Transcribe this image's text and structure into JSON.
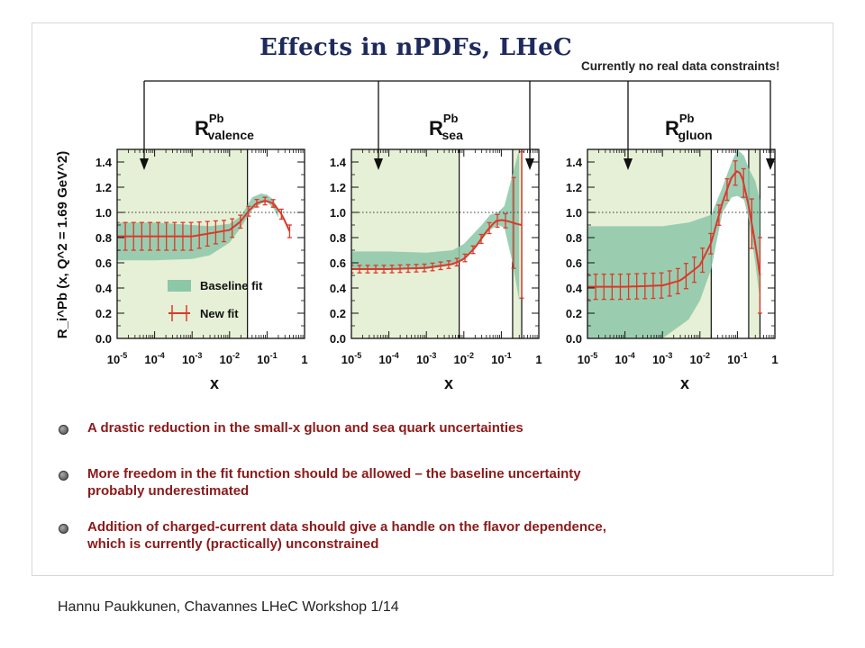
{
  "slide": {
    "title": "Effects in nPDFs, LHeC",
    "note": "Currently no real data constraints!",
    "footer": "Hannu Paukkunen, Chavannes LHeC Workshop 1/14",
    "bullets": [
      {
        "line1": "A drastic reduction in the small-x gluon and sea quark uncertainties",
        "line2": ""
      },
      {
        "line1": "More freedom in the fit function should be allowed – the baseline uncertainty",
        "line2": "probably underestimated"
      },
      {
        "line1": "Addition of charged-current data should give a handle on the flavor dependence,",
        "line2": "which is currently (practically) unconstrained"
      }
    ]
  },
  "colors": {
    "baseline_band": "#8cc7a8",
    "shaded_region": "#e6f0d6",
    "new_fit": "#d93a2b",
    "bullet_text": "#8b1a1a",
    "title": "#1e2a5c"
  },
  "chart_data": {
    "type": "line",
    "ylabel": "R_i^Pb (x, Q^2 = 1.69 GeV^2)",
    "y_ticks": [
      "0.0",
      "0.2",
      "0.4",
      "0.6",
      "0.8",
      "1.0",
      "1.2",
      "1.4"
    ],
    "x_ticks": [
      "10^-5",
      "10^-4",
      "10^-3",
      "10^-2",
      "10^-1",
      "1"
    ],
    "x_scale": "log",
    "xlim": [
      1e-05,
      1
    ],
    "ylim": [
      0,
      1.5
    ],
    "reference_line": 1.0,
    "legend": {
      "entries": [
        "Baseline fit",
        "New fit"
      ],
      "placement": "lower-left of first panel"
    },
    "panels": [
      {
        "name": "valence",
        "title_main": "R",
        "title_sup": "Pb",
        "title_sub": "valence",
        "xlabel": "x",
        "shaded_x": [
          [
            1e-05,
            0.03
          ]
        ],
        "baseline_band": {
          "x": [
            1e-05,
            0.0001,
            0.001,
            0.003,
            0.01,
            0.02,
            0.04,
            0.07,
            0.1,
            0.15,
            0.2
          ],
          "lower": [
            0.62,
            0.62,
            0.63,
            0.66,
            0.76,
            0.88,
            1.02,
            1.07,
            1.08,
            1.03,
            0.96
          ],
          "upper": [
            0.92,
            0.92,
            0.9,
            0.89,
            0.91,
            0.97,
            1.12,
            1.15,
            1.14,
            1.1,
            1.02
          ]
        },
        "new_fit": {
          "x": [
            1e-05,
            0.0001,
            0.001,
            0.01,
            0.02,
            0.03,
            0.05,
            0.08,
            0.1,
            0.15,
            0.25,
            0.4
          ],
          "y": [
            0.81,
            0.81,
            0.81,
            0.86,
            0.93,
            1.0,
            1.07,
            1.09,
            1.09,
            1.07,
            0.98,
            0.85
          ],
          "err": [
            0.11,
            0.11,
            0.11,
            0.08,
            0.05,
            0.04,
            0.03,
            0.03,
            0.03,
            0.03,
            0.04,
            0.05
          ]
        }
      },
      {
        "name": "sea",
        "title_main": "R",
        "title_sup": "Pb",
        "title_sub": "sea",
        "xlabel": "x",
        "shaded_x": [
          [
            1e-05,
            0.0075
          ],
          [
            0.2,
            0.35
          ]
        ],
        "baseline_band": {
          "x": [
            1e-05,
            0.0001,
            0.001,
            0.005,
            0.01,
            0.03,
            0.05,
            0.08,
            0.12,
            0.2,
            0.3
          ],
          "lower": [
            0.55,
            0.55,
            0.55,
            0.58,
            0.63,
            0.78,
            0.86,
            0.9,
            0.88,
            0.6,
            0.3
          ],
          "upper": [
            0.69,
            0.69,
            0.68,
            0.7,
            0.75,
            0.9,
            0.98,
            1.0,
            1.05,
            1.3,
            1.5
          ]
        },
        "new_fit": {
          "x": [
            1e-05,
            0.0001,
            0.001,
            0.005,
            0.01,
            0.02,
            0.04,
            0.07,
            0.1,
            0.15,
            0.25,
            0.35
          ],
          "y": [
            0.55,
            0.55,
            0.56,
            0.59,
            0.63,
            0.72,
            0.85,
            0.93,
            0.94,
            0.93,
            0.91,
            0.9
          ],
          "err": [
            0.03,
            0.03,
            0.03,
            0.03,
            0.03,
            0.03,
            0.04,
            0.05,
            0.05,
            0.06,
            0.5,
            0.58
          ]
        }
      },
      {
        "name": "gluon",
        "title_main": "R",
        "title_sup": "Pb",
        "title_sub": "gluon",
        "xlabel": "x",
        "shaded_x": [
          [
            1e-05,
            0.02
          ],
          [
            0.2,
            0.4
          ]
        ],
        "baseline_band": {
          "x": [
            1e-05,
            0.0001,
            0.001,
            0.005,
            0.01,
            0.02,
            0.04,
            0.07,
            0.1,
            0.15,
            0.2,
            0.3,
            0.4
          ],
          "lower": [
            0.0,
            0.0,
            0.0,
            0.15,
            0.3,
            0.55,
            1.0,
            1.12,
            1.13,
            1.1,
            0.95,
            0.6,
            0.3
          ],
          "upper": [
            0.89,
            0.89,
            0.89,
            0.92,
            0.95,
            0.98,
            1.2,
            1.4,
            1.5,
            1.45,
            1.35,
            1.25,
            1.1
          ]
        },
        "new_fit": {
          "x": [
            1e-05,
            0.0001,
            0.001,
            0.003,
            0.01,
            0.02,
            0.04,
            0.07,
            0.1,
            0.13,
            0.2,
            0.3,
            0.4
          ],
          "y": [
            0.41,
            0.41,
            0.42,
            0.46,
            0.58,
            0.76,
            1.08,
            1.28,
            1.33,
            1.3,
            1.05,
            0.75,
            0.5
          ],
          "err": [
            0.1,
            0.1,
            0.1,
            0.1,
            0.1,
            0.08,
            0.08,
            0.09,
            0.1,
            0.1,
            0.15,
            0.25,
            0.3
          ]
        }
      }
    ]
  }
}
